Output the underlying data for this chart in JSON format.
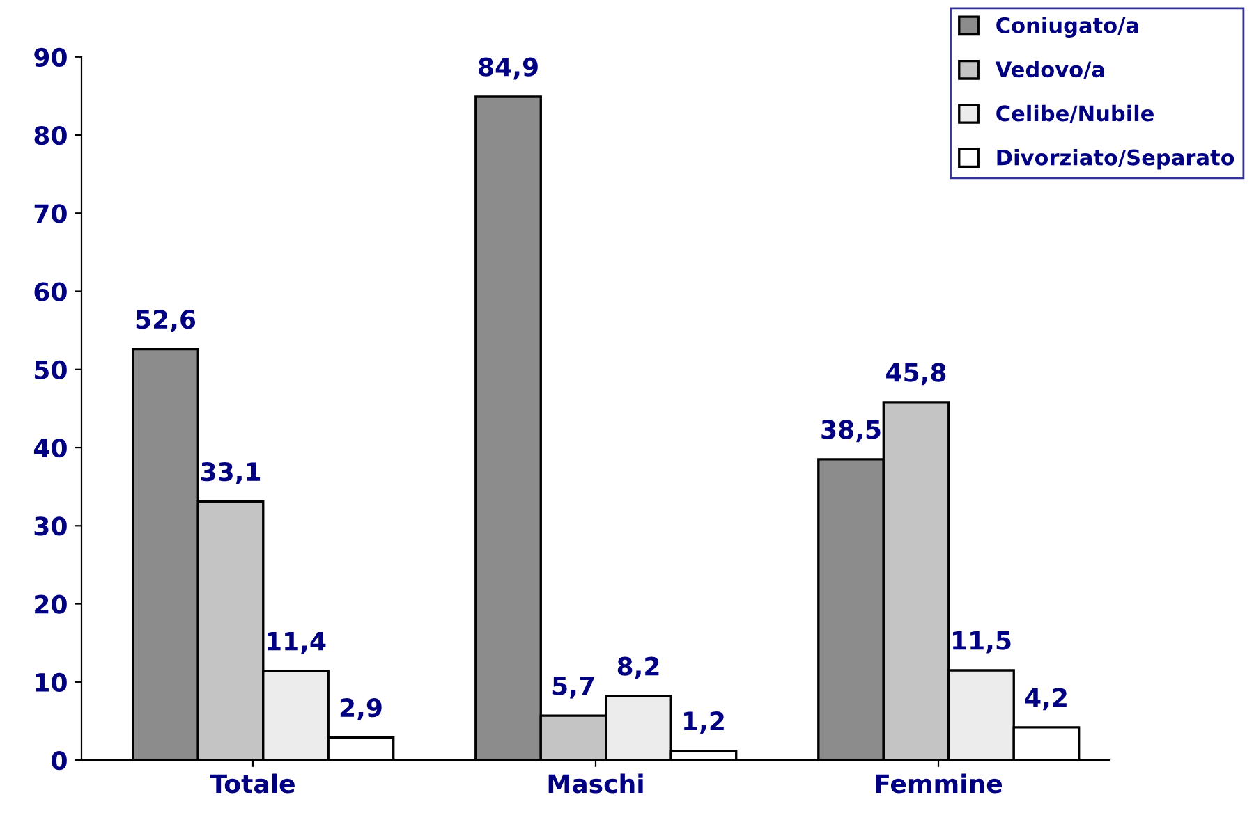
{
  "chart_data": {
    "type": "bar",
    "categories": [
      "Totale",
      "Maschi",
      "Femmine"
    ],
    "series": [
      {
        "name": "Coniugato/a",
        "color": "#8c8c8c",
        "values": [
          52.6,
          84.9,
          38.5
        ],
        "value_labels": [
          "52,6",
          "84,9",
          "38,5"
        ]
      },
      {
        "name": "Vedovo/a",
        "color": "#c4c4c4",
        "values": [
          33.1,
          5.7,
          45.8
        ],
        "value_labels": [
          "33,1",
          "5,7",
          "45,8"
        ]
      },
      {
        "name": "Celibe/Nubile",
        "color": "#ececec",
        "values": [
          11.4,
          8.2,
          11.5
        ],
        "value_labels": [
          "11,4",
          "8,2",
          "11,5"
        ]
      },
      {
        "name": "Divorziato/Separato",
        "color": "#ffffff",
        "values": [
          2.9,
          1.2,
          4.2
        ],
        "value_labels": [
          "2,9",
          "1,2",
          "4,2"
        ]
      }
    ],
    "ylim": [
      0,
      90
    ],
    "yticks": [
      0,
      10,
      20,
      30,
      40,
      50,
      60,
      70,
      80,
      90
    ],
    "grid": false,
    "legend": "top right"
  }
}
